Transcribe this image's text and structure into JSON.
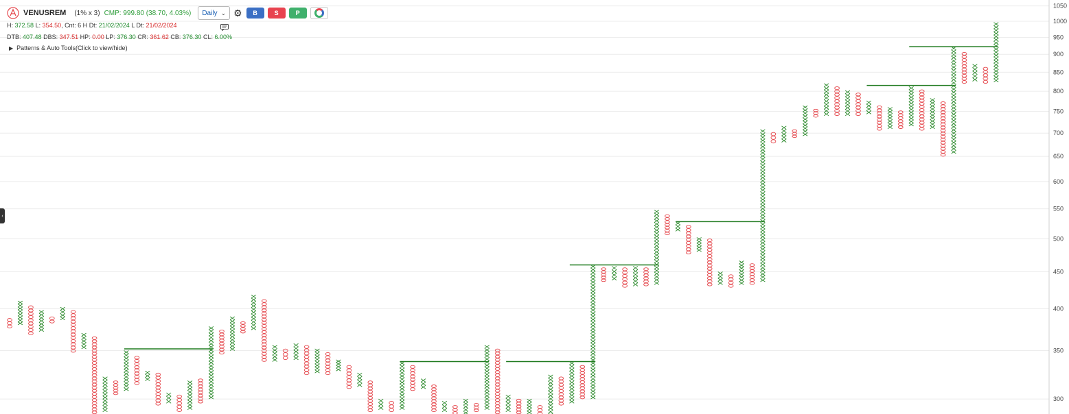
{
  "header": {
    "symbol": "VENUSREM",
    "box_info": "(1% x 3)",
    "cmp_text": "CMP: 999.80 (38.70, 4.03%)",
    "timeframe": "Daily",
    "buttons": {
      "buy": "B",
      "sell": "S",
      "p": "P"
    }
  },
  "stats": {
    "h_label": "H:",
    "h_value": "372.58",
    "l_label": "L:",
    "l_value": "354.50",
    "cnt_label": ", Cnt:",
    "cnt_value": "6 H",
    "dt_label": "Dt:",
    "dt_value": "21/02/2024",
    "ldt_label": "L Dt:",
    "ldt_value": "21/02/2024",
    "dtb_label": "DTB:",
    "dtb_value": "407.48",
    "dbs_label": "DBS:",
    "dbs_value": "347.51",
    "hp_label": "HP:",
    "hp_value": "0.00",
    "lp_label": "LP:",
    "lp_value": "376.30",
    "cr_label": "CR:",
    "cr_value": "361.62",
    "cb_label": "CB:",
    "cb_value": "376.30",
    "cl_label": "CL:",
    "cl_value": "6.00%"
  },
  "patterns_label": "Patterns & Auto Tools(Click to view/hide)",
  "colors": {
    "x": "#2c8a2c",
    "o": "#e5484d",
    "breakout": "#1f7a1f",
    "grid": "#ececec"
  },
  "chart_data": {
    "type": "point-and-figure",
    "scale": "log",
    "box_size_percent": 1,
    "reversal": 3,
    "ylim": [
      286,
      1070
    ],
    "yticks": [
      300,
      350,
      400,
      450,
      500,
      550,
      600,
      650,
      700,
      750,
      800,
      850,
      900,
      950,
      1000,
      1050
    ],
    "columns": [
      {
        "t": "O",
        "hi": 388,
        "lo": 376
      },
      {
        "t": "X",
        "hi": 410,
        "lo": 380
      },
      {
        "t": "O",
        "hi": 404,
        "lo": 368
      },
      {
        "t": "X",
        "hi": 398,
        "lo": 372
      },
      {
        "t": "O",
        "hi": 390,
        "lo": 382
      },
      {
        "t": "X",
        "hi": 402,
        "lo": 386
      },
      {
        "t": "O",
        "hi": 398,
        "lo": 348
      },
      {
        "t": "X",
        "hi": 370,
        "lo": 352
      },
      {
        "t": "O",
        "hi": 366,
        "lo": 286
      },
      {
        "t": "X",
        "hi": 322,
        "lo": 288
      },
      {
        "t": "O",
        "hi": 318,
        "lo": 304
      },
      {
        "t": "X",
        "hi": 350,
        "lo": 308
      },
      {
        "t": "O",
        "hi": 344,
        "lo": 314
      },
      {
        "t": "X",
        "hi": 328,
        "lo": 318
      },
      {
        "t": "O",
        "hi": 326,
        "lo": 294
      },
      {
        "t": "X",
        "hi": 306,
        "lo": 296
      },
      {
        "t": "O",
        "hi": 304,
        "lo": 288
      },
      {
        "t": "X",
        "hi": 318,
        "lo": 290
      },
      {
        "t": "O",
        "hi": 320,
        "lo": 296
      },
      {
        "t": "X",
        "hi": 378,
        "lo": 300
      },
      {
        "t": "O",
        "hi": 374,
        "lo": 346
      },
      {
        "t": "X",
        "hi": 390,
        "lo": 350
      },
      {
        "t": "O",
        "hi": 384,
        "lo": 370
      },
      {
        "t": "X",
        "hi": 418,
        "lo": 374
      },
      {
        "t": "O",
        "hi": 412,
        "lo": 338
      },
      {
        "t": "X",
        "hi": 356,
        "lo": 338
      },
      {
        "t": "O",
        "hi": 352,
        "lo": 340
      },
      {
        "t": "X",
        "hi": 358,
        "lo": 340
      },
      {
        "t": "O",
        "hi": 356,
        "lo": 324
      },
      {
        "t": "X",
        "hi": 352,
        "lo": 326
      },
      {
        "t": "O",
        "hi": 348,
        "lo": 324
      },
      {
        "t": "X",
        "hi": 340,
        "lo": 328
      },
      {
        "t": "O",
        "hi": 334,
        "lo": 310
      },
      {
        "t": "X",
        "hi": 326,
        "lo": 312
      },
      {
        "t": "O",
        "hi": 318,
        "lo": 288
      },
      {
        "t": "X",
        "hi": 300,
        "lo": 290
      },
      {
        "t": "O",
        "hi": 298,
        "lo": 288
      },
      {
        "t": "X",
        "hi": 338,
        "lo": 290
      },
      {
        "t": "O",
        "hi": 334,
        "lo": 308
      },
      {
        "t": "X",
        "hi": 320,
        "lo": 310
      },
      {
        "t": "O",
        "hi": 314,
        "lo": 288
      },
      {
        "t": "X",
        "hi": 298,
        "lo": 288
      },
      {
        "t": "O",
        "hi": 294,
        "lo": 272
      },
      {
        "t": "X",
        "hi": 300,
        "lo": 272
      },
      {
        "t": "O",
        "hi": 296,
        "lo": 288
      },
      {
        "t": "X",
        "hi": 356,
        "lo": 290
      },
      {
        "t": "O",
        "hi": 352,
        "lo": 286
      },
      {
        "t": "X",
        "hi": 304,
        "lo": 288
      },
      {
        "t": "O",
        "hi": 300,
        "lo": 286
      },
      {
        "t": "X",
        "hi": 300,
        "lo": 286
      },
      {
        "t": "O",
        "hi": 294,
        "lo": 276
      },
      {
        "t": "X",
        "hi": 324,
        "lo": 278
      },
      {
        "t": "O",
        "hi": 322,
        "lo": 294
      },
      {
        "t": "X",
        "hi": 338,
        "lo": 296
      },
      {
        "t": "O",
        "hi": 334,
        "lo": 300
      },
      {
        "t": "X",
        "hi": 460,
        "lo": 300
      },
      {
        "t": "O",
        "hi": 456,
        "lo": 436
      },
      {
        "t": "X",
        "hi": 458,
        "lo": 438
      },
      {
        "t": "O",
        "hi": 456,
        "lo": 428
      },
      {
        "t": "X",
        "hi": 458,
        "lo": 430
      },
      {
        "t": "O",
        "hi": 456,
        "lo": 430
      },
      {
        "t": "X",
        "hi": 548,
        "lo": 432
      },
      {
        "t": "O",
        "hi": 540,
        "lo": 506
      },
      {
        "t": "X",
        "hi": 528,
        "lo": 512
      },
      {
        "t": "O",
        "hi": 522,
        "lo": 476
      },
      {
        "t": "X",
        "hi": 502,
        "lo": 480
      },
      {
        "t": "O",
        "hi": 500,
        "lo": 430
      },
      {
        "t": "X",
        "hi": 450,
        "lo": 432
      },
      {
        "t": "O",
        "hi": 446,
        "lo": 428
      },
      {
        "t": "X",
        "hi": 466,
        "lo": 432
      },
      {
        "t": "O",
        "hi": 462,
        "lo": 432
      },
      {
        "t": "X",
        "hi": 708,
        "lo": 436
      },
      {
        "t": "O",
        "hi": 702,
        "lo": 678
      },
      {
        "t": "X",
        "hi": 716,
        "lo": 680
      },
      {
        "t": "O",
        "hi": 708,
        "lo": 690
      },
      {
        "t": "X",
        "hi": 764,
        "lo": 694
      },
      {
        "t": "O",
        "hi": 756,
        "lo": 736
      },
      {
        "t": "X",
        "hi": 820,
        "lo": 740
      },
      {
        "t": "O",
        "hi": 812,
        "lo": 740
      },
      {
        "t": "X",
        "hi": 802,
        "lo": 740
      },
      {
        "t": "O",
        "hi": 796,
        "lo": 740
      },
      {
        "t": "X",
        "hi": 776,
        "lo": 744
      },
      {
        "t": "O",
        "hi": 764,
        "lo": 706
      },
      {
        "t": "X",
        "hi": 760,
        "lo": 710
      },
      {
        "t": "O",
        "hi": 752,
        "lo": 710
      },
      {
        "t": "X",
        "hi": 812,
        "lo": 716
      },
      {
        "t": "O",
        "hi": 804,
        "lo": 706
      },
      {
        "t": "X",
        "hi": 782,
        "lo": 710
      },
      {
        "t": "O",
        "hi": 774,
        "lo": 650
      },
      {
        "t": "X",
        "hi": 922,
        "lo": 656
      },
      {
        "t": "O",
        "hi": 906,
        "lo": 820
      },
      {
        "t": "X",
        "hi": 872,
        "lo": 826
      },
      {
        "t": "O",
        "hi": 864,
        "lo": 820
      },
      {
        "t": "X",
        "hi": 996,
        "lo": 824
      }
    ],
    "breakout_lines": [
      {
        "value": 352,
        "from_col": 11,
        "to_col": 19
      },
      {
        "value": 338,
        "from_col": 37,
        "to_col": 45
      },
      {
        "value": 338,
        "from_col": 47,
        "to_col": 55
      },
      {
        "value": 460,
        "from_col": 53,
        "to_col": 61
      },
      {
        "value": 528,
        "from_col": 63,
        "to_col": 71
      },
      {
        "value": 815,
        "from_col": 81,
        "to_col": 89
      },
      {
        "value": 922,
        "from_col": 85,
        "to_col": 93
      }
    ]
  }
}
